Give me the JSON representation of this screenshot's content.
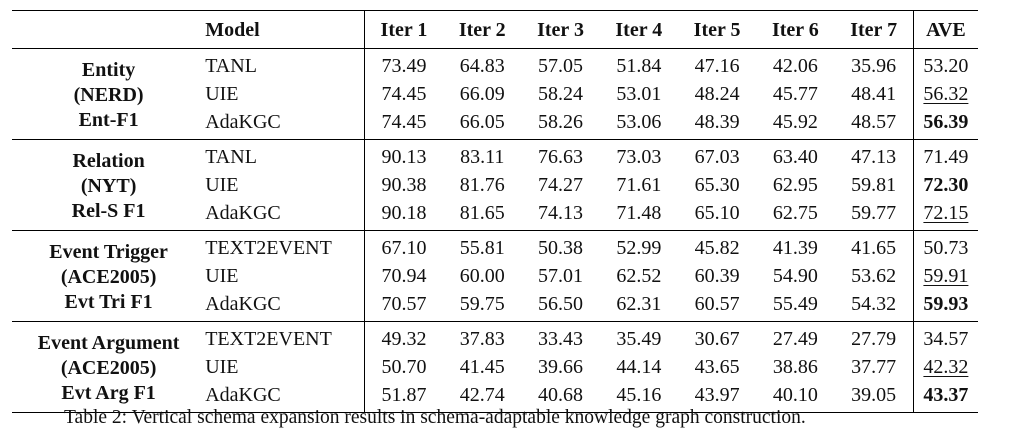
{
  "table": {
    "headers": {
      "model": "Model",
      "iters": [
        "Iter 1",
        "Iter 2",
        "Iter 3",
        "Iter 4",
        "Iter 5",
        "Iter 6",
        "Iter 7"
      ],
      "ave": "AVE"
    },
    "groups": [
      {
        "task": [
          "Entity",
          "(NERD)",
          "Ent-F1"
        ],
        "rows": [
          {
            "model": "TANL",
            "values": [
              "73.49",
              "64.83",
              "57.05",
              "51.84",
              "47.16",
              "42.06",
              "35.96"
            ],
            "ave": "53.20",
            "ave_style": "none"
          },
          {
            "model": "UIE",
            "values": [
              "74.45",
              "66.09",
              "58.24",
              "53.01",
              "48.24",
              "45.77",
              "48.41"
            ],
            "ave": "56.32",
            "ave_style": "underline"
          },
          {
            "model": "AdaKGC",
            "values": [
              "74.45",
              "66.05",
              "58.26",
              "53.06",
              "48.39",
              "45.92",
              "48.57"
            ],
            "ave": "56.39",
            "ave_style": "bold"
          }
        ]
      },
      {
        "task": [
          "Relation",
          "(NYT)",
          "Rel-S F1"
        ],
        "rows": [
          {
            "model": "TANL",
            "values": [
              "90.13",
              "83.11",
              "76.63",
              "73.03",
              "67.03",
              "63.40",
              "47.13"
            ],
            "ave": "71.49",
            "ave_style": "none"
          },
          {
            "model": "UIE",
            "values": [
              "90.38",
              "81.76",
              "74.27",
              "71.61",
              "65.30",
              "62.95",
              "59.81"
            ],
            "ave": "72.30",
            "ave_style": "bold"
          },
          {
            "model": "AdaKGC",
            "values": [
              "90.18",
              "81.65",
              "74.13",
              "71.48",
              "65.10",
              "62.75",
              "59.77"
            ],
            "ave": "72.15",
            "ave_style": "underline"
          }
        ]
      },
      {
        "task": [
          "Event Trigger",
          "(ACE2005)",
          "Evt Tri F1"
        ],
        "rows": [
          {
            "model": "TEXT2EVENT",
            "values": [
              "67.10",
              "55.81",
              "50.38",
              "52.99",
              "45.82",
              "41.39",
              "41.65"
            ],
            "ave": "50.73",
            "ave_style": "none"
          },
          {
            "model": "UIE",
            "values": [
              "70.94",
              "60.00",
              "57.01",
              "62.52",
              "60.39",
              "54.90",
              "53.62"
            ],
            "ave": "59.91",
            "ave_style": "underline"
          },
          {
            "model": "AdaKGC",
            "values": [
              "70.57",
              "59.75",
              "56.50",
              "62.31",
              "60.57",
              "55.49",
              "54.32"
            ],
            "ave": "59.93",
            "ave_style": "bold"
          }
        ]
      },
      {
        "task": [
          "Event Argument",
          "(ACE2005)",
          "Evt Arg F1"
        ],
        "rows": [
          {
            "model": "TEXT2EVENT",
            "values": [
              "49.32",
              "37.83",
              "33.43",
              "35.49",
              "30.67",
              "27.49",
              "27.79"
            ],
            "ave": "34.57",
            "ave_style": "none"
          },
          {
            "model": "UIE",
            "values": [
              "50.70",
              "41.45",
              "39.66",
              "44.14",
              "43.65",
              "38.86",
              "37.77"
            ],
            "ave": "42.32",
            "ave_style": "underline"
          },
          {
            "model": "AdaKGC",
            "values": [
              "51.87",
              "42.74",
              "40.68",
              "45.16",
              "43.97",
              "40.10",
              "39.05"
            ],
            "ave": "43.37",
            "ave_style": "bold"
          }
        ]
      }
    ]
  },
  "caption": "Table 2: Vertical schema expansion results in schema-adaptable knowledge graph construction."
}
